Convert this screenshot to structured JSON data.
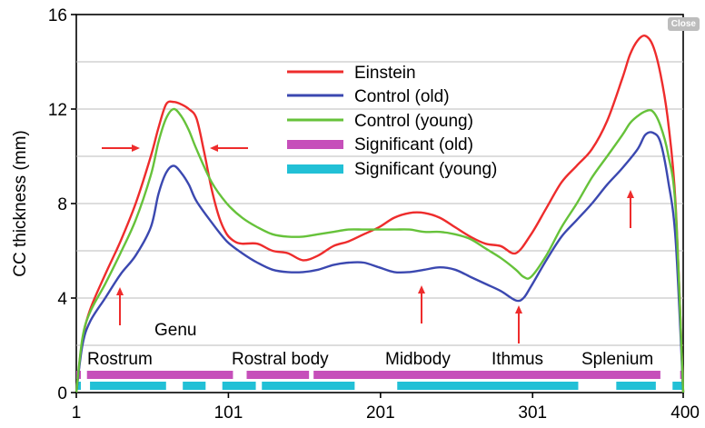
{
  "close_button": {
    "label": "Close"
  },
  "colors": {
    "einstein": "#ee2c2c",
    "control_old": "#3b48b0",
    "control_young": "#66c23a",
    "significant_old": "#c64fba",
    "significant_young": "#22c0d6",
    "arrow": "#ee2c2c",
    "grid": "#bbbbbb"
  },
  "chart_data": {
    "type": "line",
    "title": "",
    "xlabel": "",
    "ylabel": "CC thickness (mm)",
    "xlim": [
      1,
      400
    ],
    "ylim": [
      0,
      16
    ],
    "x_ticks": [
      1,
      101,
      201,
      301,
      400
    ],
    "y_ticks": [
      0,
      4,
      8,
      12,
      16
    ],
    "grid": "horizontal",
    "legend_position": "top-center",
    "series": [
      {
        "name": "Einstein",
        "x": [
          1,
          5,
          10,
          20,
          30,
          40,
          50,
          55,
          60,
          65,
          70,
          75,
          80,
          85,
          90,
          95,
          100,
          105,
          110,
          120,
          130,
          140,
          150,
          160,
          170,
          180,
          190,
          200,
          210,
          220,
          230,
          240,
          250,
          260,
          270,
          280,
          290,
          300,
          310,
          320,
          330,
          340,
          350,
          360,
          365,
          370,
          375,
          380,
          385,
          390,
          395,
          400
        ],
        "values": [
          0,
          2.2,
          3.5,
          5,
          6.4,
          8,
          10,
          11.2,
          12.2,
          12.3,
          12.2,
          12.0,
          11.6,
          10.2,
          8.6,
          7.4,
          6.7,
          6.4,
          6.3,
          6.3,
          6.0,
          5.9,
          5.6,
          5.8,
          6.2,
          6.4,
          6.7,
          7.0,
          7.4,
          7.6,
          7.6,
          7.4,
          7.0,
          6.6,
          6.3,
          6.2,
          5.9,
          6.7,
          7.8,
          8.9,
          9.6,
          10.3,
          11.5,
          13.3,
          14.3,
          14.9,
          15.1,
          14.7,
          13.5,
          11.5,
          8.0,
          0
        ]
      },
      {
        "name": "Control (old)",
        "x": [
          1,
          5,
          10,
          20,
          30,
          40,
          50,
          55,
          60,
          65,
          70,
          75,
          80,
          90,
          100,
          110,
          120,
          130,
          140,
          150,
          160,
          170,
          180,
          190,
          200,
          210,
          220,
          230,
          240,
          250,
          260,
          270,
          280,
          290,
          295,
          300,
          310,
          320,
          330,
          340,
          350,
          360,
          370,
          375,
          380,
          385,
          390,
          395,
          400
        ],
        "values": [
          0,
          2.0,
          3.0,
          4.0,
          5.0,
          5.8,
          7.0,
          8.4,
          9.3,
          9.6,
          9.3,
          8.8,
          8.1,
          7.2,
          6.4,
          5.9,
          5.5,
          5.2,
          5.1,
          5.1,
          5.2,
          5.4,
          5.5,
          5.5,
          5.3,
          5.1,
          5.1,
          5.2,
          5.3,
          5.2,
          4.9,
          4.6,
          4.3,
          3.9,
          4.0,
          4.5,
          5.6,
          6.6,
          7.3,
          8.0,
          8.8,
          9.5,
          10.3,
          10.9,
          11.0,
          10.6,
          9.0,
          6.5,
          0
        ]
      },
      {
        "name": "Control (young)",
        "x": [
          1,
          5,
          10,
          20,
          30,
          40,
          50,
          55,
          60,
          65,
          70,
          75,
          80,
          90,
          100,
          110,
          120,
          130,
          140,
          150,
          160,
          170,
          180,
          190,
          200,
          210,
          220,
          230,
          240,
          250,
          260,
          270,
          280,
          290,
          295,
          300,
          310,
          320,
          330,
          340,
          350,
          360,
          365,
          370,
          375,
          380,
          385,
          390,
          395,
          400
        ],
        "values": [
          0,
          2.3,
          3.4,
          4.6,
          5.9,
          7.3,
          9.2,
          10.6,
          11.6,
          12.0,
          11.7,
          11.1,
          10.3,
          8.9,
          8.0,
          7.4,
          7.0,
          6.7,
          6.6,
          6.6,
          6.7,
          6.8,
          6.9,
          6.9,
          6.9,
          6.9,
          6.9,
          6.8,
          6.8,
          6.7,
          6.5,
          6.1,
          5.7,
          5.2,
          4.9,
          4.9,
          5.8,
          7.0,
          8.0,
          9.1,
          10.0,
          10.9,
          11.4,
          11.7,
          11.9,
          11.9,
          11.3,
          10.1,
          7.8,
          0
        ]
      }
    ],
    "significance_bars": [
      {
        "name": "Significant (old)",
        "segments": [
          [
            1,
            4
          ],
          [
            8,
            104
          ],
          [
            113,
            154
          ],
          [
            157,
            385
          ],
          [
            398,
            400
          ]
        ]
      },
      {
        "name": "Significant (young)",
        "segments": [
          [
            1,
            4
          ],
          [
            10,
            60
          ],
          [
            71,
            86
          ],
          [
            97,
            119
          ],
          [
            123,
            184
          ],
          [
            212,
            331
          ],
          [
            356,
            382
          ],
          [
            393,
            400
          ]
        ]
      }
    ],
    "region_labels": [
      "Genu",
      "Rostrum",
      "Rostral body",
      "Midbody",
      "Ithmus",
      "Splenium"
    ]
  }
}
